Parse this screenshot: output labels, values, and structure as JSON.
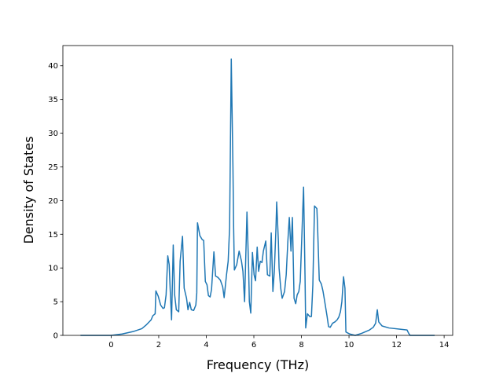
{
  "chart_data": {
    "type": "line",
    "xlabel": "Frequency (THz)",
    "ylabel": "Density of States",
    "color": "#1f77b4",
    "x": [
      -1.29,
      0,
      0.46,
      0.96,
      1.29,
      1.49,
      1.68,
      1.75,
      1.85,
      1.88,
      1.98,
      2.08,
      2.18,
      2.24,
      2.31,
      2.38,
      2.44,
      2.48,
      2.54,
      2.61,
      2.67,
      2.74,
      2.84,
      2.9,
      3.0,
      3.07,
      3.17,
      3.23,
      3.3,
      3.37,
      3.47,
      3.56,
      3.6,
      3.63,
      3.73,
      3.83,
      3.89,
      3.96,
      4.03,
      4.09,
      4.16,
      4.22,
      4.32,
      4.39,
      4.49,
      4.59,
      4.69,
      4.75,
      4.85,
      4.92,
      4.98,
      5.05,
      5.12,
      5.15,
      5.18,
      5.28,
      5.38,
      5.48,
      5.54,
      5.61,
      5.71,
      5.78,
      5.81,
      5.87,
      5.94,
      6.01,
      6.07,
      6.14,
      6.2,
      6.27,
      6.34,
      6.4,
      6.5,
      6.57,
      6.67,
      6.73,
      6.8,
      6.86,
      6.93,
      6.96,
      7.03,
      7.06,
      7.13,
      7.19,
      7.29,
      7.36,
      7.43,
      7.49,
      7.56,
      7.62,
      7.69,
      7.76,
      7.82,
      7.89,
      7.95,
      8.09,
      8.15,
      8.18,
      8.25,
      8.35,
      8.42,
      8.48,
      8.55,
      8.65,
      8.68,
      8.75,
      8.84,
      8.91,
      8.98,
      9.08,
      9.14,
      9.21,
      9.31,
      9.41,
      9.5,
      9.57,
      9.64,
      9.7,
      9.77,
      9.83,
      9.87,
      10.03,
      10.26,
      10.53,
      10.86,
      11.02,
      11.12,
      11.19,
      11.25,
      11.39,
      11.68,
      12.18,
      12.44,
      12.51,
      12.57,
      13.6
    ],
    "values": [
      0,
      0,
      0.2,
      0.6,
      1.0,
      1.6,
      2.3,
      2.9,
      3.2,
      6.6,
      5.8,
      4.5,
      4.0,
      4.1,
      6.0,
      11.8,
      10.5,
      7.0,
      2.3,
      13.4,
      6.0,
      3.8,
      3.5,
      11.0,
      14.7,
      7.0,
      5.5,
      3.8,
      4.9,
      3.8,
      3.7,
      4.5,
      6.3,
      16.7,
      14.8,
      14.2,
      14.1,
      8.0,
      7.5,
      5.9,
      5.7,
      6.8,
      12.4,
      8.8,
      8.6,
      8.2,
      7.2,
      5.6,
      9.0,
      11.0,
      16.0,
      41.0,
      25.0,
      16.0,
      9.7,
      10.5,
      12.5,
      11.0,
      9.5,
      5.0,
      18.3,
      10.0,
      5.0,
      3.3,
      12.3,
      9.0,
      8.1,
      13.1,
      9.5,
      11.0,
      10.8,
      12.5,
      14.0,
      9.0,
      8.8,
      15.2,
      6.5,
      9.5,
      16.0,
      19.8,
      14.0,
      10.0,
      7.0,
      5.5,
      6.5,
      9.0,
      14.0,
      17.5,
      12.5,
      17.5,
      5.5,
      4.7,
      6.0,
      6.5,
      8.0,
      22.0,
      9.0,
      1.1,
      3.2,
      2.8,
      2.8,
      7.5,
      19.2,
      18.8,
      16.0,
      8.2,
      7.6,
      6.5,
      5.0,
      2.8,
      1.3,
      1.2,
      1.8,
      2.0,
      2.3,
      2.7,
      3.5,
      5.0,
      8.7,
      7.0,
      0.5,
      0.2,
      0.0,
      0.3,
      0.8,
      1.2,
      1.8,
      3.8,
      2.0,
      1.4,
      1.1,
      0.9,
      0.8,
      0.3,
      0.0,
      0
    ],
    "xlim": [
      -2.03,
      14.36
    ],
    "xticks": [
      0,
      2,
      4,
      6,
      8,
      10,
      12,
      14
    ],
    "ylim": [
      0,
      43.0
    ],
    "yticks": [
      0,
      5,
      10,
      15,
      20,
      25,
      30,
      35,
      40
    ]
  }
}
